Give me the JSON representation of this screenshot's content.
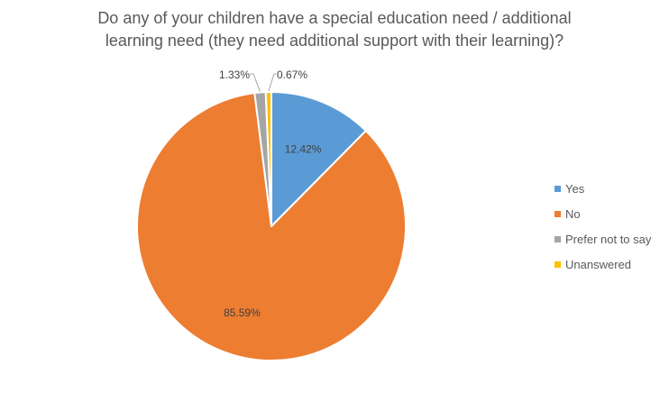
{
  "chart_data": {
    "type": "pie",
    "title": "Do any of your children have a special education need / additional learning need (they need additional support with their learning)?",
    "title_lines": [
      "Do any of your children have a special education need / additional",
      "learning need (they need additional support with their learning)?"
    ],
    "categories": [
      "Yes",
      "No",
      "Prefer not to say",
      "Unanswered"
    ],
    "values": [
      12.42,
      85.59,
      1.33,
      0.67
    ],
    "data_labels": [
      "12.42%",
      "85.59%",
      "1.33%",
      "0.67%"
    ],
    "colors": [
      "#5B9BD5",
      "#ED7D31",
      "#A5A5A5",
      "#FFC000"
    ],
    "start_angle_deg": 0,
    "direction": "clockwise",
    "legend": "right",
    "legend_entries": [
      "Yes",
      "No",
      "Prefer not to say",
      "Unanswered"
    ]
  }
}
